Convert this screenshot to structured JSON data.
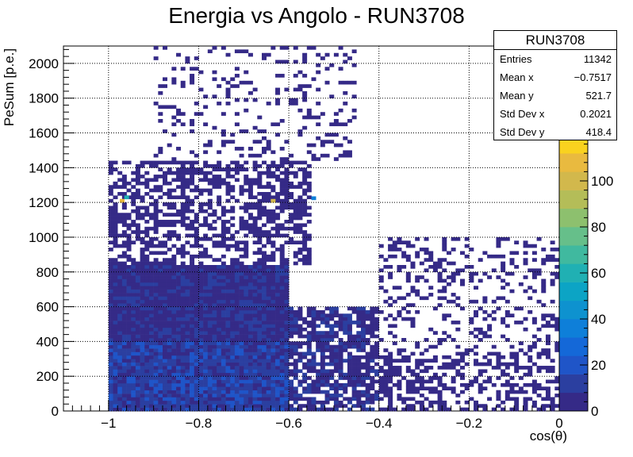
{
  "chart_data": {
    "type": "heatmap",
    "title": "Energia vs Angolo - RUN3708",
    "xlabel": "cos(θ)",
    "ylabel": "PeSum [p.e.]",
    "xlim": [
      -1.1,
      0.0
    ],
    "ylim": [
      0,
      2100
    ],
    "x_ticks": [
      -1,
      -0.8,
      -0.6,
      -0.4,
      -0.2,
      0
    ],
    "x_tick_labels": [
      "−1",
      "−0.8",
      "−0.6",
      "−0.4",
      "−0.2",
      "0"
    ],
    "y_ticks": [
      0,
      200,
      400,
      600,
      800,
      1000,
      1200,
      1400,
      1600,
      1800,
      2000
    ],
    "y_tick_labels": [
      "0",
      "200",
      "400",
      "600",
      "800",
      "1000",
      "1200",
      "1400",
      "1600",
      "1800",
      "2000"
    ],
    "z_range": [
      0,
      120
    ],
    "z_ticks": [
      0,
      20,
      40,
      60,
      80,
      100
    ],
    "z_tick_labels": [
      "0",
      "20",
      "40",
      "60",
      "80",
      "100"
    ],
    "palette": [
      "#352a87",
      "#2b3fa0",
      "#1f55c8",
      "#1468d8",
      "#0e7fd9",
      "#0e92cf",
      "#0ca4c5",
      "#20b0b3",
      "#40b99f",
      "#66bf8a",
      "#8dc06e",
      "#b4bd58",
      "#d2b84c",
      "#e9ba3f",
      "#f9d21f"
    ],
    "grid": true,
    "legend_position": "top-right",
    "stats": {
      "name": "RUN3708",
      "entries": {
        "label": "Entries",
        "value": "11342"
      },
      "mean_x": {
        "label": "Mean x",
        "value": "−0.7517"
      },
      "mean_y": {
        "label": "Mean y",
        "value": "521.7"
      },
      "std_x": {
        "label": "Std Dev x",
        "value": "0.2021"
      },
      "std_y": {
        "label": "Std Dev y",
        "value": "418.4"
      }
    },
    "bins": {
      "nx": 110,
      "x_range": [
        -1.1,
        0.0
      ],
      "ny": 105,
      "y_range": [
        0,
        2100
      ]
    },
    "density_regions": [
      {
        "x": [
          -1.0,
          -0.6
        ],
        "y": [
          0,
          850
        ],
        "weight": 1
      },
      {
        "x": [
          -0.6,
          -0.4
        ],
        "y": [
          0,
          600
        ],
        "weight": 0.75
      },
      {
        "x": [
          -1.0,
          -0.55
        ],
        "y": [
          850,
          1450
        ],
        "weight": 0.55
      },
      {
        "x": [
          -0.55,
          0.0
        ],
        "y": [
          0,
          350
        ],
        "weight": 0.45
      },
      {
        "x": [
          -0.4,
          0.0
        ],
        "y": [
          350,
          1000
        ],
        "weight": 0.25
      },
      {
        "x": [
          -0.9,
          -0.45
        ],
        "y": [
          1450,
          2100
        ],
        "weight": 0.15
      }
    ],
    "hot_cells": [
      {
        "x": -0.97,
        "y": 1210,
        "z": 110
      },
      {
        "x": -0.635,
        "y": 1210,
        "z": 100
      },
      {
        "x": -0.96,
        "y": 1230,
        "z": 60
      },
      {
        "x": -0.545,
        "y": 1225,
        "z": 35
      }
    ]
  }
}
